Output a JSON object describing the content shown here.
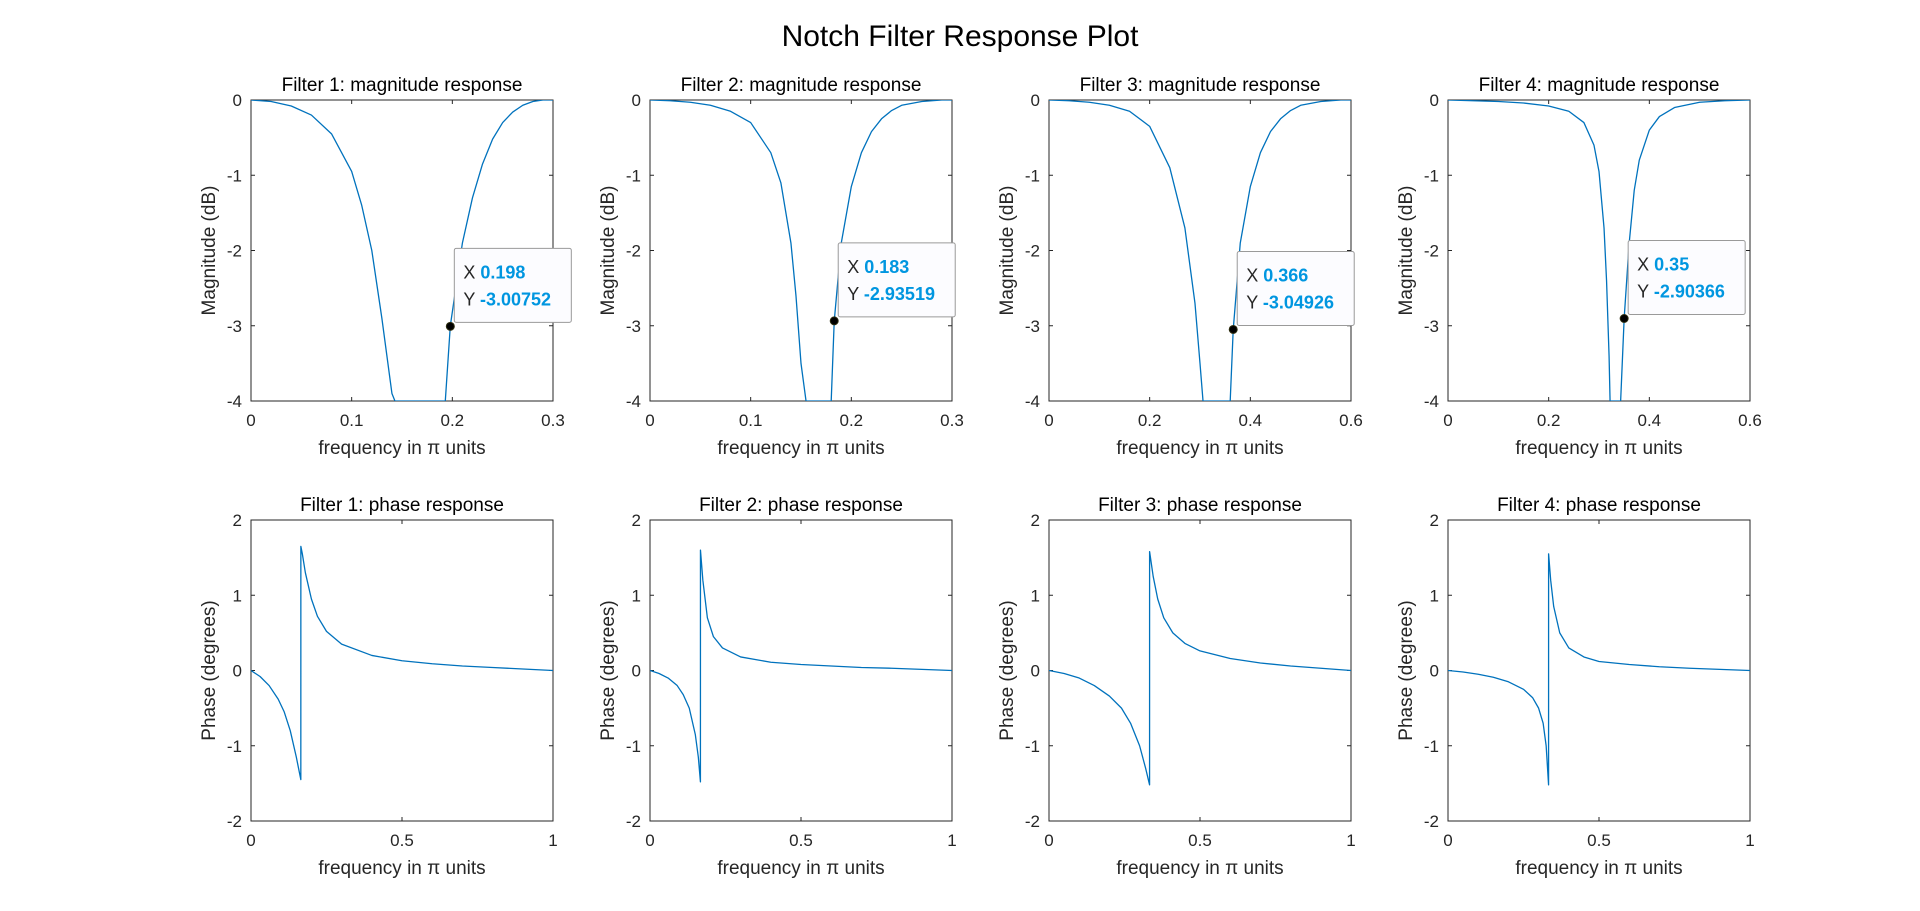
{
  "figure": {
    "title": "Notch Filter Response Plot"
  },
  "colors": {
    "line": "#0072BD",
    "axes_background": "#FFFFFF",
    "axes_edge": "#262626",
    "datatip_value": "#0096E0",
    "datatip_label": "#262626",
    "marker": "#000000"
  },
  "chart_data": [
    {
      "type": "line",
      "title": "Filter 1: magnitude response",
      "xlabel": "frequency in π units",
      "ylabel": "Magnitude (dB)",
      "xlim": [
        0,
        0.3
      ],
      "ylim": [
        -4,
        0
      ],
      "xticks": [
        0,
        0.1,
        0.2,
        0.3
      ],
      "xtick_labels": [
        "0",
        "0.1",
        "0.2",
        "0.3"
      ],
      "yticks": [
        -4,
        -3,
        -2,
        -1,
        0
      ],
      "ytick_labels": [
        "-4",
        "-3",
        "-2",
        "-1",
        "0"
      ],
      "grid": false,
      "series": [
        {
          "x": [
            0,
            0.02,
            0.04,
            0.06,
            0.08,
            0.1,
            0.11,
            0.12,
            0.13,
            0.14,
            0.143,
            0.193,
            0.198,
            0.21,
            0.22,
            0.23,
            0.24,
            0.25,
            0.26,
            0.27,
            0.28,
            0.29,
            0.3
          ],
          "y": [
            0,
            -0.02,
            -0.08,
            -0.2,
            -0.45,
            -0.95,
            -1.4,
            -2.0,
            -2.9,
            -3.9,
            -4,
            -4,
            -3.0,
            -1.9,
            -1.3,
            -0.85,
            -0.52,
            -0.3,
            -0.16,
            -0.07,
            -0.02,
            0,
            0
          ]
        }
      ],
      "datatip": {
        "x": 0.198,
        "y": -3.00752,
        "x_label": "X",
        "y_label": "Y",
        "x_text": "0.198",
        "y_text": "-3.00752"
      }
    },
    {
      "type": "line",
      "title": "Filter 2: magnitude response",
      "xlabel": "frequency in π units",
      "ylabel": "Magnitude (dB)",
      "xlim": [
        0,
        0.3
      ],
      "ylim": [
        -4,
        0
      ],
      "xticks": [
        0,
        0.1,
        0.2,
        0.3
      ],
      "xtick_labels": [
        "0",
        "0.1",
        "0.2",
        "0.3"
      ],
      "yticks": [
        -4,
        -3,
        -2,
        -1,
        0
      ],
      "ytick_labels": [
        "-4",
        "-3",
        "-2",
        "-1",
        "0"
      ],
      "grid": false,
      "series": [
        {
          "x": [
            0,
            0.02,
            0.04,
            0.06,
            0.08,
            0.1,
            0.12,
            0.13,
            0.14,
            0.145,
            0.15,
            0.155,
            0.18,
            0.183,
            0.19,
            0.2,
            0.21,
            0.22,
            0.23,
            0.24,
            0.25,
            0.27,
            0.29,
            0.3
          ],
          "y": [
            0,
            -0.01,
            -0.03,
            -0.07,
            -0.15,
            -0.3,
            -0.7,
            -1.1,
            -1.9,
            -2.6,
            -3.5,
            -4,
            -4,
            -2.94,
            -1.9,
            -1.15,
            -0.7,
            -0.42,
            -0.25,
            -0.14,
            -0.07,
            -0.02,
            0,
            0
          ]
        }
      ],
      "datatip": {
        "x": 0.183,
        "y": -2.93519,
        "x_label": "X",
        "y_label": "Y",
        "x_text": "0.183",
        "y_text": "-2.93519"
      }
    },
    {
      "type": "line",
      "title": "Filter 3: magnitude response",
      "xlabel": "frequency in π units",
      "ylabel": "Magnitude (dB)",
      "xlim": [
        0,
        0.6
      ],
      "ylim": [
        -4,
        0
      ],
      "xticks": [
        0,
        0.2,
        0.4,
        0.6
      ],
      "xtick_labels": [
        "0",
        "0.2",
        "0.4",
        "0.6"
      ],
      "yticks": [
        -4,
        -3,
        -2,
        -1,
        0
      ],
      "ytick_labels": [
        "-4",
        "-3",
        "-2",
        "-1",
        "0"
      ],
      "grid": false,
      "series": [
        {
          "x": [
            0,
            0.04,
            0.08,
            0.12,
            0.16,
            0.2,
            0.24,
            0.27,
            0.29,
            0.3,
            0.306,
            0.36,
            0.366,
            0.38,
            0.4,
            0.42,
            0.44,
            0.46,
            0.48,
            0.5,
            0.54,
            0.58,
            0.6
          ],
          "y": [
            0,
            -0.01,
            -0.03,
            -0.07,
            -0.15,
            -0.35,
            -0.9,
            -1.7,
            -2.7,
            -3.5,
            -4,
            -4,
            -3.05,
            -1.9,
            -1.15,
            -0.7,
            -0.42,
            -0.25,
            -0.14,
            -0.07,
            -0.02,
            0,
            0
          ]
        }
      ],
      "datatip": {
        "x": 0.366,
        "y": -3.04926,
        "x_label": "X",
        "y_label": "Y",
        "x_text": "0.366",
        "y_text": "-3.04926"
      }
    },
    {
      "type": "line",
      "title": "Filter 4: magnitude response",
      "xlabel": "frequency in π units",
      "ylabel": "Magnitude (dB)",
      "xlim": [
        0,
        0.6
      ],
      "ylim": [
        -4,
        0
      ],
      "xticks": [
        0,
        0.2,
        0.4,
        0.6
      ],
      "xtick_labels": [
        "0",
        "0.2",
        "0.4",
        "0.6"
      ],
      "yticks": [
        -4,
        -3,
        -2,
        -1,
        0
      ],
      "ytick_labels": [
        "-4",
        "-3",
        "-2",
        "-1",
        "0"
      ],
      "grid": false,
      "series": [
        {
          "x": [
            0,
            0.05,
            0.1,
            0.15,
            0.2,
            0.24,
            0.27,
            0.29,
            0.3,
            0.31,
            0.315,
            0.32,
            0.322,
            0.343,
            0.35,
            0.36,
            0.37,
            0.38,
            0.4,
            0.42,
            0.45,
            0.5,
            0.55,
            0.6
          ],
          "y": [
            0,
            -0.01,
            -0.02,
            -0.04,
            -0.08,
            -0.15,
            -0.3,
            -0.6,
            -0.95,
            -1.7,
            -2.4,
            -3.4,
            -4,
            -4,
            -2.9,
            -1.9,
            -1.2,
            -0.8,
            -0.4,
            -0.22,
            -0.1,
            -0.03,
            -0.01,
            0
          ]
        }
      ],
      "datatip": {
        "x": 0.35,
        "y": -2.90366,
        "x_label": "X",
        "y_label": "Y",
        "x_text": "0.35",
        "y_text": "-2.90366"
      }
    },
    {
      "type": "line",
      "title": "Filter 1: phase response",
      "xlabel": "frequency in π units",
      "ylabel": "Phase (degrees)",
      "xlim": [
        0,
        1
      ],
      "ylim": [
        -2,
        2
      ],
      "xticks": [
        0,
        0.5,
        1
      ],
      "xtick_labels": [
        "0",
        "0.5",
        "1"
      ],
      "yticks": [
        -2,
        -1,
        0,
        1,
        2
      ],
      "ytick_labels": [
        "-2",
        "-1",
        "0",
        "1",
        "2"
      ],
      "grid": false,
      "series": [
        {
          "x": [
            0,
            0.03,
            0.06,
            0.09,
            0.11,
            0.13,
            0.15,
            0.16,
            0.165,
            0.1651,
            0.17,
            0.18,
            0.2,
            0.22,
            0.25,
            0.3,
            0.4,
            0.5,
            0.6,
            0.7,
            0.8,
            0.9,
            1
          ],
          "y": [
            0,
            -0.08,
            -0.2,
            -0.38,
            -0.55,
            -0.8,
            -1.15,
            -1.35,
            -1.45,
            1.65,
            1.55,
            1.3,
            0.95,
            0.72,
            0.52,
            0.35,
            0.2,
            0.13,
            0.09,
            0.06,
            0.04,
            0.02,
            0
          ]
        }
      ]
    },
    {
      "type": "line",
      "title": "Filter 2: phase response",
      "xlabel": "frequency in π units",
      "ylabel": "Phase (degrees)",
      "xlim": [
        0,
        1
      ],
      "ylim": [
        -2,
        2
      ],
      "xticks": [
        0,
        0.5,
        1
      ],
      "xtick_labels": [
        "0",
        "0.5",
        "1"
      ],
      "yticks": [
        -2,
        -1,
        0,
        1,
        2
      ],
      "ytick_labels": [
        "-2",
        "-1",
        "0",
        "1",
        "2"
      ],
      "grid": false,
      "series": [
        {
          "x": [
            0,
            0.03,
            0.06,
            0.09,
            0.11,
            0.13,
            0.15,
            0.16,
            0.167,
            0.1671,
            0.175,
            0.19,
            0.21,
            0.24,
            0.3,
            0.4,
            0.5,
            0.6,
            0.7,
            0.8,
            0.9,
            1
          ],
          "y": [
            0,
            -0.04,
            -0.1,
            -0.2,
            -0.32,
            -0.5,
            -0.85,
            -1.15,
            -1.48,
            1.6,
            1.2,
            0.7,
            0.45,
            0.3,
            0.18,
            0.11,
            0.08,
            0.06,
            0.04,
            0.03,
            0.015,
            0
          ]
        }
      ]
    },
    {
      "type": "line",
      "title": "Filter 3: phase response",
      "xlabel": "frequency in π units",
      "ylabel": "Phase (degrees)",
      "xlim": [
        0,
        1
      ],
      "ylim": [
        -2,
        2
      ],
      "xticks": [
        0,
        0.5,
        1
      ],
      "xtick_labels": [
        "0",
        "0.5",
        "1"
      ],
      "yticks": [
        -2,
        -1,
        0,
        1,
        2
      ],
      "ytick_labels": [
        "-2",
        "-1",
        "0",
        "1",
        "2"
      ],
      "grid": false,
      "series": [
        {
          "x": [
            0,
            0.05,
            0.1,
            0.15,
            0.2,
            0.24,
            0.27,
            0.3,
            0.32,
            0.333,
            0.3331,
            0.345,
            0.36,
            0.38,
            0.41,
            0.45,
            0.5,
            0.6,
            0.7,
            0.8,
            0.9,
            1
          ],
          "y": [
            0,
            -0.04,
            -0.1,
            -0.2,
            -0.34,
            -0.5,
            -0.7,
            -1.0,
            -1.3,
            -1.52,
            1.58,
            1.25,
            0.95,
            0.7,
            0.5,
            0.36,
            0.26,
            0.16,
            0.1,
            0.06,
            0.03,
            0
          ]
        }
      ]
    },
    {
      "type": "line",
      "title": "Filter 4: phase response",
      "xlabel": "frequency in π units",
      "ylabel": "Phase (degrees)",
      "xlim": [
        0,
        1
      ],
      "ylim": [
        -2,
        2
      ],
      "xticks": [
        0,
        0.5,
        1
      ],
      "xtick_labels": [
        "0",
        "0.5",
        "1"
      ],
      "yticks": [
        -2,
        -1,
        0,
        1,
        2
      ],
      "ytick_labels": [
        "-2",
        "-1",
        "0",
        "1",
        "2"
      ],
      "grid": false,
      "series": [
        {
          "x": [
            0,
            0.05,
            0.1,
            0.15,
            0.2,
            0.25,
            0.28,
            0.3,
            0.315,
            0.325,
            0.333,
            0.3331,
            0.34,
            0.35,
            0.37,
            0.4,
            0.45,
            0.5,
            0.6,
            0.7,
            0.8,
            0.9,
            1
          ],
          "y": [
            0,
            -0.02,
            -0.05,
            -0.09,
            -0.15,
            -0.25,
            -0.36,
            -0.5,
            -0.7,
            -1.0,
            -1.52,
            1.55,
            1.2,
            0.85,
            0.5,
            0.3,
            0.18,
            0.12,
            0.08,
            0.05,
            0.03,
            0.015,
            0
          ]
        }
      ]
    }
  ]
}
